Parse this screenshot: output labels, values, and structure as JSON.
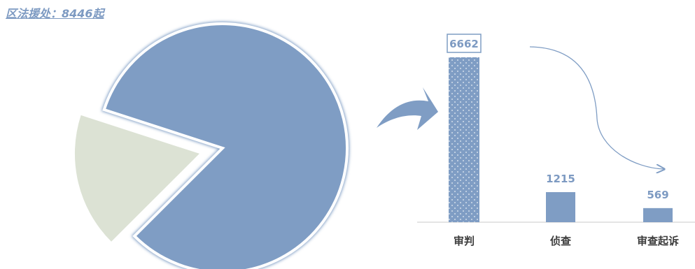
{
  "title": "区法援处：8446起",
  "chart_data": [
    {
      "type": "pie",
      "values": [
        8446,
        1791
      ],
      "colors": [
        "#7f9dc4",
        "#dce2d4"
      ]
    },
    {
      "type": "bar",
      "categories": [
        "审判",
        "侦查",
        "审查起诉"
      ],
      "values": [
        6662,
        1215,
        569
      ],
      "labels": [
        "6662",
        "1215",
        "569"
      ],
      "colors": {
        "bar": "#7f9dc4",
        "highlight_border": "#7f9dc4"
      }
    }
  ]
}
